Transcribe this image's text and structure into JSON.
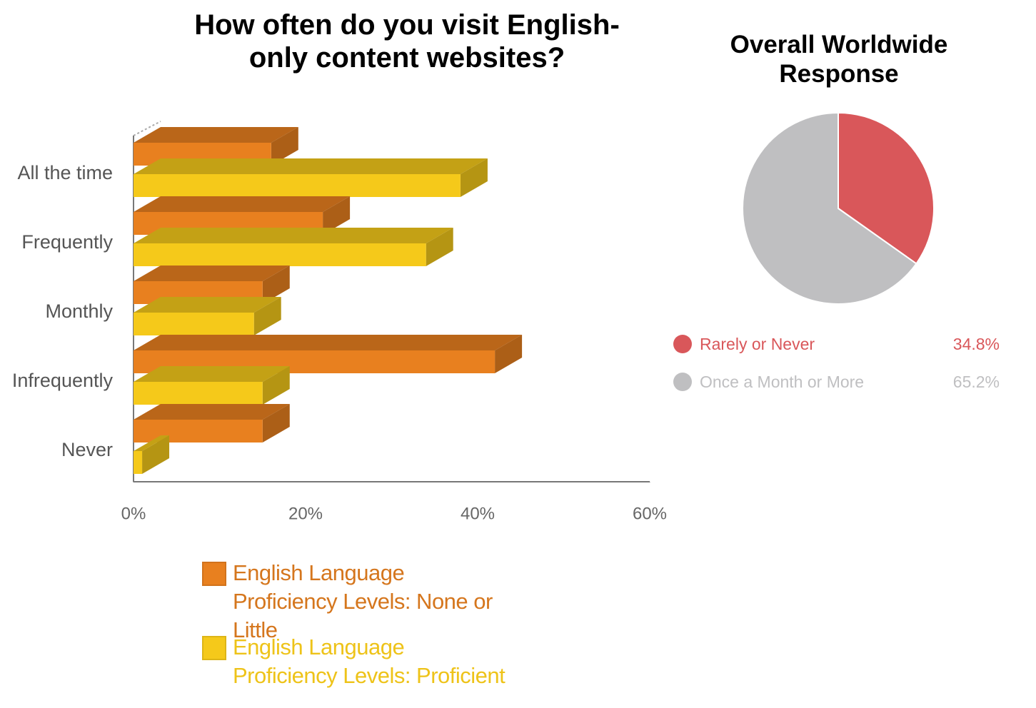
{
  "chart_data": [
    {
      "type": "hbar3d",
      "title": "How often do you visit English-only content websites?",
      "categories": [
        "All the time",
        "Frequently",
        "Monthly",
        "Infrequently",
        "Never"
      ],
      "series": [
        {
          "name": "English Language Proficiency Levels: None or Little",
          "color": "#e8801f",
          "values": [
            16,
            22,
            15,
            42,
            15
          ]
        },
        {
          "name": "English Language Proficiency Levels: Proficient",
          "color": "#f5c91a",
          "values": [
            38,
            34,
            14,
            15,
            1
          ]
        }
      ],
      "xlim": [
        0,
        60
      ],
      "xticks": [
        {
          "value": 0,
          "label": "0%"
        },
        {
          "value": 20,
          "label": "20%"
        },
        {
          "value": 40,
          "label": "40%"
        },
        {
          "value": 60,
          "label": "60%"
        }
      ],
      "grid": false
    },
    {
      "type": "pie",
      "title": "Overall Worldwide Response",
      "categories": [
        "Rarely or Never",
        "Once a Month or More"
      ],
      "values": [
        34.8,
        65.2
      ],
      "value_labels": [
        "34.8%",
        "65.2%"
      ],
      "colors": [
        "#d9575a",
        "#bfbfc1"
      ]
    }
  ]
}
